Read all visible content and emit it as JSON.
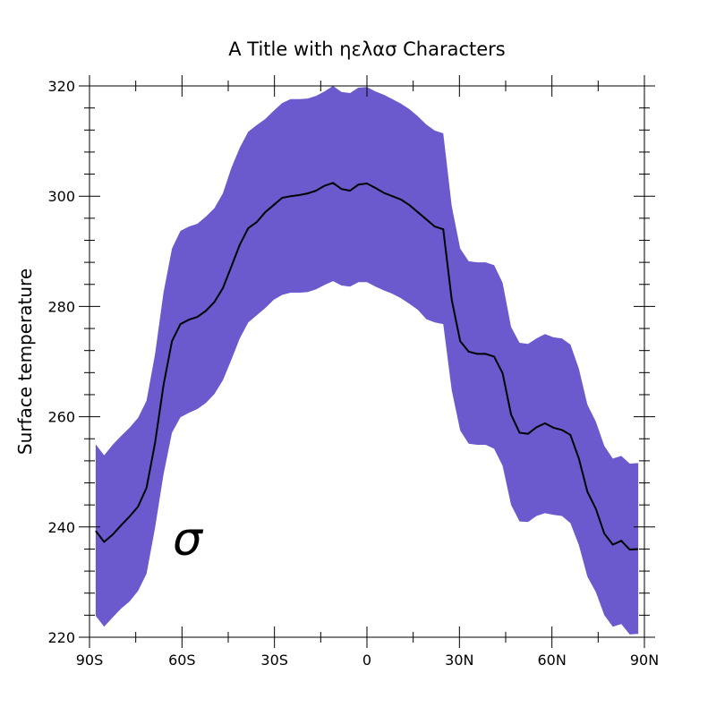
{
  "chart_data": {
    "type": "line",
    "title": "A Title with ηελασ Characters",
    "ylabel": "Surface temperature",
    "annotation": "σ",
    "x": [
      -88,
      -85.25,
      -82.5,
      -79.75,
      -77,
      -74.25,
      -71.5,
      -68.75,
      -66,
      -63.25,
      -60.5,
      -57.75,
      -55,
      -52.25,
      -49.5,
      -46.75,
      -44,
      -41.25,
      -38.5,
      -35.75,
      -33,
      -30.25,
      -27.5,
      -24.75,
      -22,
      -19.25,
      -16.5,
      -13.75,
      -11,
      -8.25,
      -5.5,
      -2.75,
      0,
      2.75,
      5.5,
      8.25,
      11,
      13.75,
      16.5,
      19.25,
      22,
      24.75,
      27.5,
      30.25,
      33,
      35.75,
      38.5,
      41.25,
      44,
      46.75,
      49.5,
      52.25,
      55,
      57.75,
      60.5,
      63.25,
      66,
      68.75,
      71.5,
      74.25,
      77,
      79.75,
      82.5,
      85.25,
      88
    ],
    "line": {
      "color": "#000000",
      "values": [
        239.3,
        237.3,
        238.6,
        240.3,
        241.9,
        243.7,
        247.1,
        255.2,
        265.7,
        273.7,
        276.8,
        277.6,
        278.1,
        279.2,
        280.8,
        283.3,
        287.2,
        291.2,
        294.2,
        295.3,
        297.1,
        298.4,
        299.7,
        300.0,
        300.2,
        300.5,
        301.0,
        301.9,
        302.4,
        301.3,
        301.0,
        302.1,
        302.3,
        301.5,
        300.6,
        300.0,
        299.4,
        298.4,
        297.1,
        295.8,
        294.5,
        294.0,
        281.2,
        273.7,
        271.8,
        271.4,
        271.4,
        270.9,
        267.9,
        260.4,
        257.1,
        256.9,
        258.1,
        258.8,
        258.0,
        257.6,
        256.7,
        252.4,
        246.4,
        243.3,
        238.8,
        236.8,
        237.5,
        235.9,
        236.0
      ]
    },
    "band": {
      "color": "#6a5acd",
      "upper": [
        255.0,
        253.0,
        254.9,
        256.5,
        258.0,
        259.8,
        262.9,
        271.3,
        282.5,
        290.5,
        293.7,
        294.5,
        295.0,
        296.3,
        297.8,
        300.5,
        305.1,
        308.8,
        311.7,
        312.9,
        314.0,
        315.5,
        316.9,
        317.6,
        317.6,
        317.7,
        318.2,
        319.0,
        320.0,
        318.9,
        318.7,
        319.7,
        319.8,
        319.0,
        318.4,
        317.6,
        316.8,
        315.8,
        314.5,
        313.0,
        311.9,
        311.4,
        298.2,
        290.5,
        288.2,
        288.0,
        288.0,
        287.5,
        284.3,
        276.3,
        273.4,
        273.2,
        274.2,
        275.0,
        274.4,
        274.2,
        273.1,
        268.7,
        262.2,
        259.1,
        254.7,
        252.4,
        252.9,
        251.5,
        251.6
      ],
      "lower": [
        223.9,
        221.9,
        223.6,
        225.2,
        226.5,
        228.4,
        231.5,
        239.8,
        249.5,
        257.1,
        259.9,
        260.7,
        261.4,
        262.5,
        264.1,
        266.6,
        270.3,
        274.2,
        277.1,
        278.4,
        279.7,
        281.2,
        282.1,
        282.5,
        282.5,
        282.6,
        283.1,
        283.9,
        284.6,
        283.8,
        283.6,
        284.4,
        284.4,
        283.6,
        282.9,
        282.3,
        281.5,
        280.5,
        279.4,
        277.7,
        277.1,
        276.8,
        264.8,
        257.5,
        255.1,
        254.9,
        254.9,
        254.2,
        251.1,
        244.0,
        241.0,
        240.9,
        242.0,
        242.5,
        242.2,
        242.0,
        240.7,
        236.7,
        231.0,
        228.2,
        224.0,
        221.9,
        222.4,
        220.5,
        220.6
      ]
    },
    "xlim": [
      -90,
      90
    ],
    "xticks": [
      {
        "value": -90,
        "label": "90S"
      },
      {
        "value": -60,
        "label": "60S"
      },
      {
        "value": -30,
        "label": "30S"
      },
      0,
      {
        "value": 30,
        "label": "30N"
      },
      {
        "value": 60,
        "label": "60N"
      },
      {
        "value": 90,
        "label": "90N"
      }
    ],
    "xminorticks": [
      -75,
      -45,
      -15,
      15,
      45,
      75
    ],
    "ylim": [
      220,
      320
    ],
    "yticks": [
      220,
      240,
      260,
      280,
      300,
      320
    ],
    "yminorticks": [
      224,
      228,
      232,
      236,
      244,
      248,
      252,
      256,
      264,
      268,
      272,
      276,
      284,
      288,
      292,
      296,
      304,
      308,
      312,
      316
    ]
  }
}
